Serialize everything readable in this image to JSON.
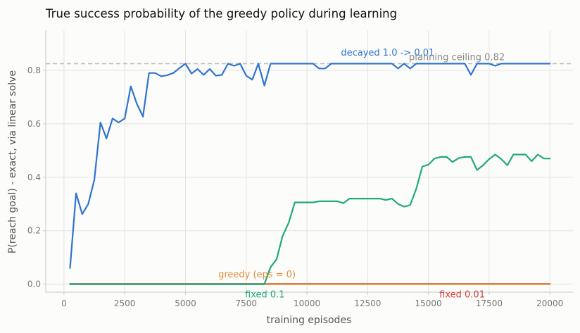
{
  "chart_data": {
    "type": "line",
    "title": "True success probability of the greedy policy during learning",
    "xlabel": "training episodes",
    "ylabel": "P(reach goal) - exact, via linear solve",
    "xlim": [
      -750,
      20950
    ],
    "ylim": [
      -0.03,
      0.95
    ],
    "xticks": [
      0,
      2500,
      5000,
      7500,
      10000,
      12500,
      15000,
      17500,
      20000
    ],
    "xtick_labels": [
      "0",
      "2500",
      "5000",
      "7500",
      "10000",
      "12500",
      "15000",
      "17500",
      "20000"
    ],
    "yticks": [
      0.0,
      0.2,
      0.4,
      0.6,
      0.8
    ],
    "ytick_labels": [
      "0.0",
      "0.2",
      "0.4",
      "0.6",
      "0.8"
    ],
    "grid": true,
    "reference_line": {
      "y": 0.825,
      "label": "planning ceiling 0.82",
      "color": "#bbbbbb"
    },
    "series": [
      {
        "name": "decayed 1.0 -> 0.01",
        "color": "#2f74d0",
        "x": [
          250,
          500,
          750,
          1000,
          1250,
          1500,
          1750,
          2000,
          2250,
          2500,
          2750,
          3000,
          3250,
          3500,
          3750,
          4000,
          4250,
          4500,
          4750,
          5000,
          5250,
          5500,
          5750,
          6000,
          6250,
          6500,
          6750,
          7000,
          7250,
          7500,
          7750,
          8000,
          8250,
          8500,
          8750,
          9000,
          9250,
          9500,
          9750,
          10000,
          10250,
          10500,
          10750,
          11000,
          11250,
          11500,
          11750,
          12000,
          12250,
          12500,
          12750,
          13000,
          13250,
          13500,
          13750,
          14000,
          14250,
          14500,
          14750,
          15000,
          15250,
          15500,
          15750,
          16000,
          16250,
          16500,
          16750,
          17000,
          17250,
          17500,
          17750,
          18000,
          18250,
          18500,
          18750,
          19000,
          19250,
          19500,
          19750,
          20000
        ],
        "y": [
          0.06,
          0.34,
          0.262,
          0.3,
          0.39,
          0.605,
          0.545,
          0.62,
          0.605,
          0.62,
          0.74,
          0.675,
          0.627,
          0.79,
          0.79,
          0.778,
          0.782,
          0.79,
          0.808,
          0.825,
          0.788,
          0.805,
          0.783,
          0.805,
          0.78,
          0.783,
          0.825,
          0.817,
          0.825,
          0.78,
          0.765,
          0.825,
          0.743,
          0.825,
          0.825,
          0.825,
          0.825,
          0.825,
          0.825,
          0.825,
          0.825,
          0.807,
          0.807,
          0.825,
          0.825,
          0.825,
          0.825,
          0.825,
          0.825,
          0.825,
          0.825,
          0.825,
          0.825,
          0.825,
          0.807,
          0.825,
          0.807,
          0.825,
          0.825,
          0.825,
          0.825,
          0.825,
          0.825,
          0.825,
          0.825,
          0.825,
          0.783,
          0.825,
          0.825,
          0.825,
          0.817,
          0.825,
          0.825,
          0.825,
          0.825,
          0.825,
          0.825,
          0.825,
          0.825,
          0.825
        ]
      },
      {
        "name": "fixed 0.1",
        "color": "#1faa7a",
        "x": [
          250,
          8250,
          8500,
          8750,
          9000,
          9250,
          9500,
          9750,
          10000,
          10250,
          10500,
          10750,
          11000,
          11250,
          11500,
          11750,
          12000,
          12250,
          12500,
          12750,
          13000,
          13250,
          13500,
          13750,
          14000,
          14250,
          14500,
          14750,
          15000,
          15250,
          15500,
          15750,
          16000,
          16250,
          16500,
          16750,
          17000,
          17250,
          17500,
          17750,
          18000,
          18250,
          18500,
          18750,
          19000,
          19250,
          19500,
          19750,
          20000
        ],
        "y": [
          0.0,
          0.0,
          0.063,
          0.093,
          0.18,
          0.23,
          0.306,
          0.306,
          0.306,
          0.306,
          0.31,
          0.31,
          0.31,
          0.31,
          0.303,
          0.32,
          0.32,
          0.32,
          0.32,
          0.32,
          0.32,
          0.315,
          0.32,
          0.3,
          0.29,
          0.296,
          0.357,
          0.44,
          0.447,
          0.47,
          0.476,
          0.476,
          0.457,
          0.472,
          0.476,
          0.476,
          0.427,
          0.445,
          0.468,
          0.485,
          0.468,
          0.445,
          0.485,
          0.485,
          0.485,
          0.46,
          0.485,
          0.47,
          0.47
        ]
      },
      {
        "name": "fixed 0.01",
        "color": "#d04040",
        "x": [
          250,
          20000
        ],
        "y": [
          0.001,
          0.001
        ]
      },
      {
        "name": "greedy (eps = 0)",
        "color": "#e08a3a",
        "x": [
          250,
          20000
        ],
        "y": [
          0.0,
          0.0
        ]
      }
    ],
    "annotations": [
      {
        "text": "decayed 1.0 -> 0.01",
        "x": 11400,
        "y": 0.855,
        "color": "#2f74d0"
      },
      {
        "text": "planning ceiling 0.82",
        "x": 14200,
        "y": 0.838,
        "color": "#888888"
      },
      {
        "text": "greedy (eps = 0)",
        "x": 6350,
        "y": 0.025,
        "color": "#e08a3a"
      },
      {
        "text": "fixed 0.1",
        "x": 7450,
        "y": -0.05,
        "color": "#1faa7a"
      },
      {
        "text": "fixed 0.01",
        "x": 15450,
        "y": -0.05,
        "color": "#d04040"
      }
    ]
  }
}
